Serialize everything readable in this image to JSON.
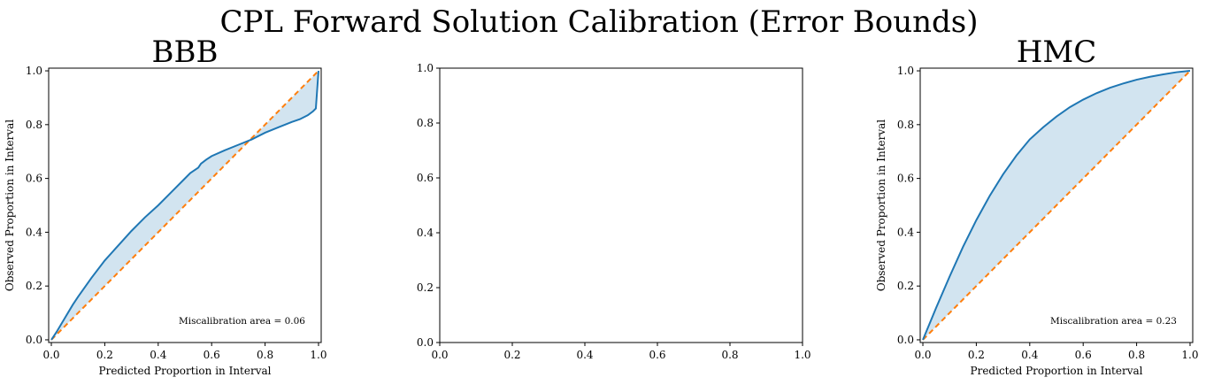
{
  "figure": {
    "suptitle": "CPL Forward Solution Calibration (Error Bounds)"
  },
  "chart_data": [
    {
      "type": "line",
      "title": "BBB",
      "xlabel": "Predicted Proportion in Interval",
      "ylabel": "Observed Proportion in Interval",
      "xlim": [
        -0.01,
        1.01
      ],
      "ylim": [
        -0.01,
        1.01
      ],
      "xticks": [
        "0.0",
        "0.2",
        "0.4",
        "0.6",
        "0.8",
        "1.0"
      ],
      "yticks": [
        "0.0",
        "0.2",
        "0.4",
        "0.6",
        "0.8",
        "1.0"
      ],
      "grid": false,
      "annotation": "Miscalibration area = 0.06",
      "fill_between": "calibration_curve_and_ideal",
      "colors": {
        "curve": "#1f77b4",
        "ideal": "#ff7f0e",
        "fill": "#1f77b4"
      },
      "series": [
        {
          "x": [
            0.0,
            0.02,
            0.05,
            0.08,
            0.1,
            0.15,
            0.2,
            0.25,
            0.3,
            0.35,
            0.4,
            0.45,
            0.5,
            0.52,
            0.55,
            0.56,
            0.58,
            0.6,
            0.65,
            0.7,
            0.75,
            0.8,
            0.85,
            0.9,
            0.93,
            0.96,
            0.98,
            0.99,
            1.0
          ],
          "y": [
            0.0,
            0.03,
            0.08,
            0.13,
            0.16,
            0.23,
            0.295,
            0.35,
            0.405,
            0.455,
            0.5,
            0.55,
            0.6,
            0.62,
            0.64,
            0.655,
            0.67,
            0.683,
            0.705,
            0.725,
            0.745,
            0.77,
            0.79,
            0.81,
            0.82,
            0.835,
            0.85,
            0.86,
            1.0
          ]
        },
        {
          "x": [
            0.0,
            1.0
          ],
          "y": [
            0.0,
            1.0
          ]
        }
      ]
    },
    {
      "type": "line",
      "title": "",
      "xlabel": "",
      "ylabel": "",
      "xlim": [
        0.0,
        1.0
      ],
      "ylim": [
        0.0,
        1.0
      ],
      "xticks": [
        "0.0",
        "0.2",
        "0.4",
        "0.6",
        "0.8",
        "1.0"
      ],
      "yticks": [
        "0.0",
        "0.2",
        "0.4",
        "0.6",
        "0.8",
        "1.0"
      ],
      "grid": false,
      "series": []
    },
    {
      "type": "line",
      "title": "HMC",
      "xlabel": "Predicted Proportion in Interval",
      "ylabel": "Observed Proportion in Interval",
      "xlim": [
        -0.01,
        1.01
      ],
      "ylim": [
        -0.01,
        1.01
      ],
      "xticks": [
        "0.0",
        "0.2",
        "0.4",
        "0.6",
        "0.8",
        "1.0"
      ],
      "yticks": [
        "0.0",
        "0.2",
        "0.4",
        "0.6",
        "0.8",
        "1.0"
      ],
      "grid": false,
      "annotation": "Miscalibration area = 0.23",
      "fill_between": "calibration_curve_and_ideal",
      "colors": {
        "curve": "#1f77b4",
        "ideal": "#ff7f0e",
        "fill": "#1f77b4"
      },
      "series": [
        {
          "x": [
            0.0,
            0.025,
            0.05,
            0.1,
            0.15,
            0.2,
            0.25,
            0.3,
            0.35,
            0.4,
            0.45,
            0.5,
            0.55,
            0.6,
            0.65,
            0.7,
            0.75,
            0.8,
            0.85,
            0.9,
            0.95,
            1.0
          ],
          "y": [
            0.0,
            0.06,
            0.12,
            0.235,
            0.345,
            0.445,
            0.535,
            0.615,
            0.685,
            0.745,
            0.79,
            0.83,
            0.865,
            0.893,
            0.917,
            0.937,
            0.953,
            0.967,
            0.978,
            0.987,
            0.995,
            1.0
          ]
        },
        {
          "x": [
            0.0,
            1.0
          ],
          "y": [
            0.0,
            1.0
          ]
        }
      ]
    }
  ]
}
